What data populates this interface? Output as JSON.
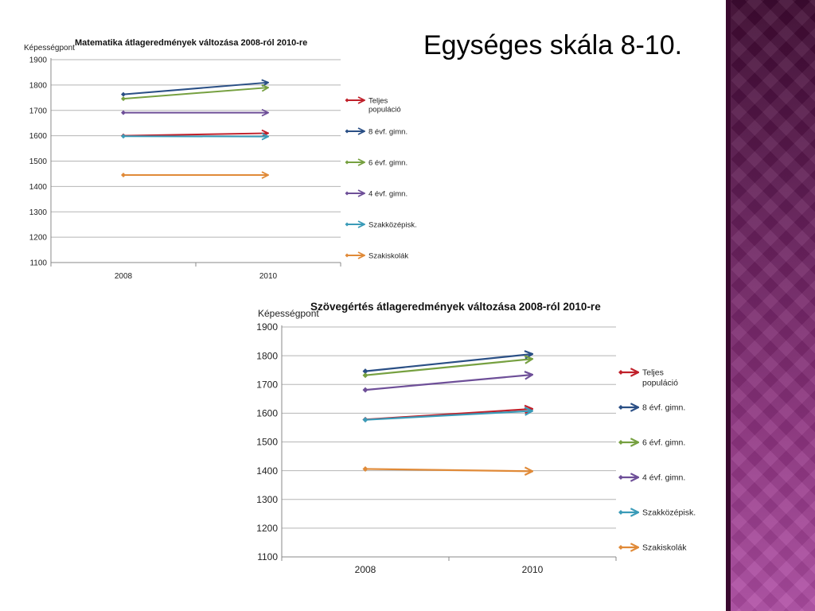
{
  "slide": {
    "title": "Egységes skála 8-10.",
    "colors": {
      "panel": "#7a2a6e",
      "background": "#ffffff"
    }
  },
  "chart_data": [
    {
      "type": "line",
      "title": "Matematika átlageredmények változása 2008-ról 2010-re",
      "ylabel": "Képességpont",
      "xlabel": "",
      "categories": [
        "2008",
        "2010"
      ],
      "ylim": [
        1100,
        1900
      ],
      "yticks": [
        1100,
        1200,
        1300,
        1400,
        1500,
        1600,
        1700,
        1800,
        1900
      ],
      "grid": true,
      "legend_position": "right",
      "series": [
        {
          "name": "Teljes populáció",
          "color": "#c0202a",
          "values": [
            1600,
            1610
          ]
        },
        {
          "name": "8 évf. gimn.",
          "color": "#2a4f85",
          "values": [
            1763,
            1810
          ]
        },
        {
          "name": "6 évf. gimn.",
          "color": "#76a040",
          "values": [
            1746,
            1790
          ]
        },
        {
          "name": "4 évf. gimn.",
          "color": "#6e4f98",
          "values": [
            1691,
            1691
          ]
        },
        {
          "name": "Szakközépisk.",
          "color": "#3a9bb8",
          "values": [
            1598,
            1597
          ]
        },
        {
          "name": "Szakiskolák",
          "color": "#e08a38",
          "values": [
            1445,
            1445
          ]
        }
      ]
    },
    {
      "type": "line",
      "title": "Szövegértés átlageredmények változása 2008-ról 2010-re",
      "ylabel": "Képességpont",
      "xlabel": "",
      "categories": [
        "2008",
        "2010"
      ],
      "ylim": [
        1100,
        1900
      ],
      "yticks": [
        1100,
        1200,
        1300,
        1400,
        1500,
        1600,
        1700,
        1800,
        1900
      ],
      "grid": true,
      "legend_position": "right",
      "series": [
        {
          "name": "Teljes populáció",
          "color": "#c0202a",
          "values": [
            1578,
            1615
          ]
        },
        {
          "name": "8 évf. gimn.",
          "color": "#2a4f85",
          "values": [
            1746,
            1806
          ]
        },
        {
          "name": "6 évf. gimn.",
          "color": "#76a040",
          "values": [
            1732,
            1789
          ]
        },
        {
          "name": "4 évf. gimn.",
          "color": "#6e4f98",
          "values": [
            1681,
            1734
          ]
        },
        {
          "name": "Szakközépisk.",
          "color": "#3a9bb8",
          "values": [
            1577,
            1608
          ]
        },
        {
          "name": "Szakiskolák",
          "color": "#e08a38",
          "values": [
            1406,
            1398
          ]
        }
      ]
    }
  ]
}
